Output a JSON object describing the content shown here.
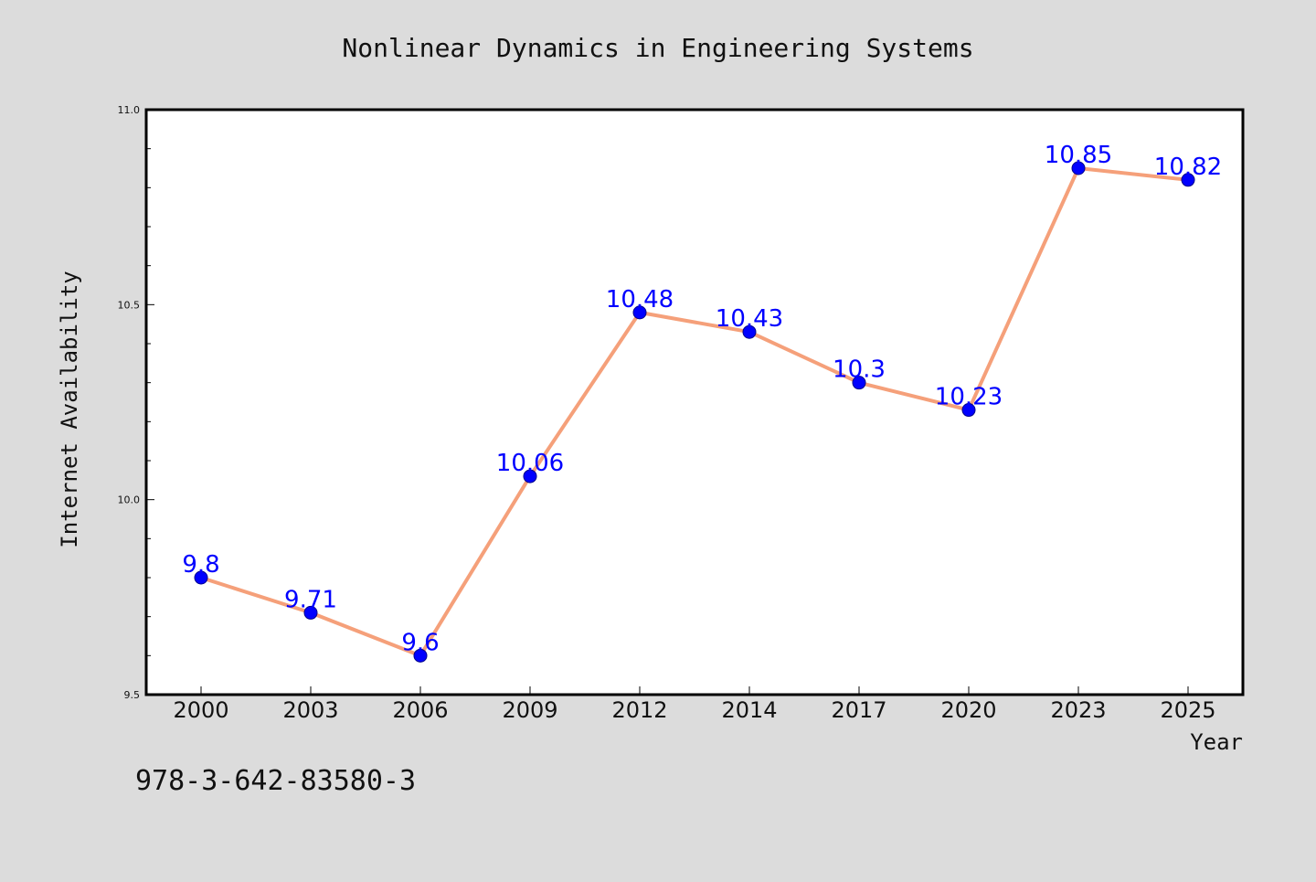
{
  "colors": {
    "background": "#dcdcdc",
    "plot_background": "#ffffff",
    "line": "#f5a07a",
    "marker": "#0000ff",
    "data_label": "#0000ff"
  },
  "footer_text": "978-3-642-83580-3",
  "chart_data": {
    "type": "line",
    "title": "Nonlinear Dynamics in Engineering Systems",
    "xlabel": "Year",
    "ylabel": "Internet Availability",
    "categories": [
      "2000",
      "2003",
      "2006",
      "2009",
      "2012",
      "2014",
      "2017",
      "2020",
      "2023",
      "2025"
    ],
    "series": [
      {
        "values": [
          9.8,
          9.71,
          9.6,
          10.06,
          10.48,
          10.43,
          10.3,
          10.23,
          10.85,
          10.82
        ],
        "labels": [
          "9.8",
          "9.71",
          "9.6",
          "10.06",
          "10.48",
          "10.43",
          "10.3",
          "10.23",
          "10.85",
          "10.82"
        ]
      }
    ],
    "ylim": [
      9.5,
      11.0
    ],
    "yticks": [
      "9.5",
      "10.0",
      "10.5",
      "11.0"
    ],
    "grid": false,
    "legend": "none"
  }
}
